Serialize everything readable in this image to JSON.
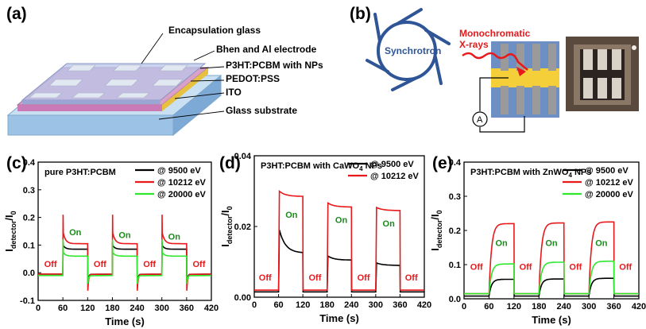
{
  "panels": {
    "a": {
      "label": "(a)",
      "layers": [
        "Encapsulation glass",
        "Bhen and Al electrode",
        "P3HT:PCBM with NPs",
        "PEDOT:PSS",
        "ITO",
        "Glass substrate"
      ]
    },
    "b": {
      "label": "(b)",
      "synchrotron": "Synchrotron",
      "beam_line1": "Monochromatic",
      "beam_line2": "X-rays",
      "ammeter": "A"
    },
    "c": {
      "label": "(c)"
    },
    "d": {
      "label": "(d)"
    },
    "e": {
      "label": "(e)"
    }
  },
  "colors": {
    "black": "#000000",
    "red": "#e8181b",
    "green": "#2ee82e",
    "on_text": "#1a8a1a",
    "off_text": "#e8181b",
    "synch": "#2f5597",
    "beam": "#e8181b"
  },
  "chart_data": [
    {
      "id": "c",
      "type": "line",
      "title": "pure P3HT:PCBM",
      "xlabel": "Time (s)",
      "ylabel_main": "I",
      "ylabel_sub": "detector",
      "ylabel_tail": "/I",
      "ylabel_sub2": "0",
      "xlim": [
        0,
        420
      ],
      "ylim": [
        -0.1,
        0.4
      ],
      "xticks": [
        "0",
        "60",
        "120",
        "180",
        "240",
        "300",
        "360",
        "420"
      ],
      "yticks": [
        "-0.1",
        "0.0",
        "0.1",
        "0.2",
        "0.3",
        "0.4"
      ],
      "ytick_values": [
        -0.1,
        0.0,
        0.1,
        0.2,
        0.3,
        0.4
      ],
      "on_intervals": [
        [
          60,
          120
        ],
        [
          180,
          240
        ],
        [
          300,
          360
        ]
      ],
      "series": [
        {
          "name": "@ 9500 eV",
          "color": "black",
          "base": -0.005,
          "peak": 0.11,
          "plateau_start": 0.1,
          "plateau_end": 0.085,
          "under": -0.04
        },
        {
          "name": "@ 10212 eV",
          "color": "red",
          "base": -0.005,
          "peak": 0.21,
          "plateau_start": 0.15,
          "plateau_end": 0.105,
          "under": -0.065
        },
        {
          "name": "@ 20000 eV",
          "color": "green",
          "base": -0.01,
          "peak": 0.12,
          "plateau_start": 0.075,
          "plateau_end": 0.06,
          "under": -0.04
        }
      ],
      "annotations": [
        {
          "text": "On",
          "x": 90,
          "y": 0.135,
          "kind": "on"
        },
        {
          "text": "On",
          "x": 210,
          "y": 0.125,
          "kind": "on"
        },
        {
          "text": "On",
          "x": 330,
          "y": 0.12,
          "kind": "on"
        },
        {
          "text": "Off",
          "x": 30,
          "y": 0.02,
          "kind": "off"
        },
        {
          "text": "Off",
          "x": 150,
          "y": 0.02,
          "kind": "off"
        },
        {
          "text": "Off",
          "x": 270,
          "y": 0.02,
          "kind": "off"
        },
        {
          "text": "Off",
          "x": 390,
          "y": 0.02,
          "kind": "off"
        }
      ]
    },
    {
      "id": "d",
      "type": "line",
      "title": "P3HT:PCBM with CaWO",
      "title_sub": "4",
      "title_tail": " NPs",
      "xlabel": "Time (s)",
      "ylabel_main": "I",
      "ylabel_sub": "detector",
      "ylabel_tail": "/I",
      "ylabel_sub2": "0",
      "xlim": [
        0,
        420
      ],
      "ylim": [
        0.0,
        0.04
      ],
      "xticks": [
        "0",
        "60",
        "120",
        "180",
        "240",
        "300",
        "360",
        "420"
      ],
      "yticks": [
        "0.00",
        "0.02",
        "0.04"
      ],
      "ytick_values": [
        0.0,
        0.02,
        0.04
      ],
      "on_intervals": [
        [
          60,
          120
        ],
        [
          180,
          240
        ],
        [
          300,
          360
        ]
      ],
      "series": [
        {
          "name": "@ 9500 eV",
          "color": "black",
          "base": 0.0015,
          "pulses": [
            [
              0.02,
              0.0125
            ],
            [
              0.0118,
              0.0105
            ],
            [
              0.0098,
              0.009
            ]
          ]
        },
        {
          "name": "@ 10212 eV",
          "color": "red",
          "base": 0.002,
          "pulses": [
            [
              0.0302,
              0.0285
            ],
            [
              0.0268,
              0.0255
            ],
            [
              0.0255,
              0.0245
            ]
          ]
        }
      ],
      "annotations": [
        {
          "text": "On",
          "x": 92,
          "y": 0.0225,
          "kind": "on"
        },
        {
          "text": "On",
          "x": 215,
          "y": 0.021,
          "kind": "on"
        },
        {
          "text": "On",
          "x": 332,
          "y": 0.02,
          "kind": "on"
        },
        {
          "text": "Off",
          "x": 27,
          "y": 0.0047,
          "kind": "off"
        },
        {
          "text": "Off",
          "x": 150,
          "y": 0.0047,
          "kind": "off"
        },
        {
          "text": "Off",
          "x": 270,
          "y": 0.0047,
          "kind": "off"
        },
        {
          "text": "Off",
          "x": 388,
          "y": 0.0047,
          "kind": "off"
        }
      ]
    },
    {
      "id": "e",
      "type": "line",
      "title": "P3HT:PCBM with ZnWO",
      "title_sub": "4",
      "title_tail": " NPs",
      "xlabel": "Time (s)",
      "ylabel_main": "I",
      "ylabel_sub": "detector",
      "ylabel_tail": "/I",
      "ylabel_sub2": "0",
      "xlim": [
        0,
        420
      ],
      "ylim": [
        0.0,
        0.4
      ],
      "xticks": [
        "0",
        "60",
        "120",
        "180",
        "240",
        "300",
        "360",
        "420"
      ],
      "yticks": [
        "0.0",
        "0.1",
        "0.2",
        "0.3",
        "0.4"
      ],
      "ytick_values": [
        0.0,
        0.1,
        0.2,
        0.3,
        0.4
      ],
      "on_intervals": [
        [
          60,
          120
        ],
        [
          180,
          240
        ],
        [
          300,
          360
        ]
      ],
      "series": [
        {
          "name": "@ 9500 eV",
          "color": "black",
          "base": 0.008,
          "pulses": [
            [
              0.05,
              0.057
            ],
            [
              0.052,
              0.058
            ],
            [
              0.055,
              0.06
            ]
          ]
        },
        {
          "name": "@ 10212 eV",
          "color": "red",
          "base": 0.015,
          "pulses": [
            [
              0.2,
              0.22
            ],
            [
              0.2,
              0.222
            ],
            [
              0.205,
              0.225
            ]
          ]
        },
        {
          "name": "@ 20000 eV",
          "color": "green",
          "base": 0.015,
          "pulses": [
            [
              0.09,
              0.102
            ],
            [
              0.095,
              0.107
            ],
            [
              0.098,
              0.11
            ]
          ]
        }
      ],
      "annotations": [
        {
          "text": "On",
          "x": 90,
          "y": 0.155,
          "kind": "on"
        },
        {
          "text": "On",
          "x": 210,
          "y": 0.155,
          "kind": "on"
        },
        {
          "text": "On",
          "x": 330,
          "y": 0.155,
          "kind": "on"
        },
        {
          "text": "Off",
          "x": 30,
          "y": 0.085,
          "kind": "off"
        },
        {
          "text": "Off",
          "x": 148,
          "y": 0.085,
          "kind": "off"
        },
        {
          "text": "Off",
          "x": 268,
          "y": 0.085,
          "kind": "off"
        },
        {
          "text": "Off",
          "x": 388,
          "y": 0.085,
          "kind": "off"
        }
      ]
    }
  ]
}
